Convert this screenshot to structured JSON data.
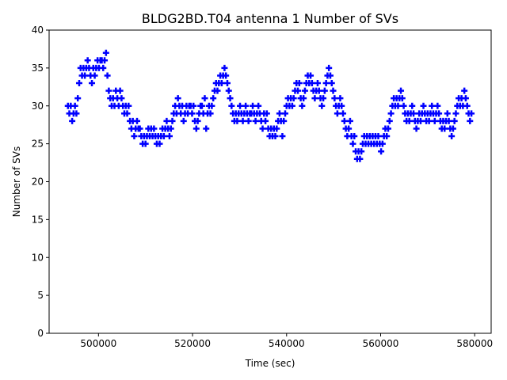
{
  "chart_data": {
    "type": "scatter",
    "title": "BLDG2BD.T04 antenna 1 Number of SVs",
    "xlabel": "Time (sec)",
    "ylabel": "Number of SVs",
    "xlim": [
      489500,
      583500
    ],
    "ylim": [
      0,
      40
    ],
    "xticks": [
      500000,
      520000,
      540000,
      560000,
      580000
    ],
    "xtick_labels": [
      "500000",
      "520000",
      "540000",
      "560000",
      "580000"
    ],
    "yticks": [
      0,
      5,
      10,
      15,
      20,
      25,
      30,
      35,
      40
    ],
    "ytick_labels": [
      "0",
      "5",
      "10",
      "15",
      "20",
      "25",
      "30",
      "35",
      "40"
    ],
    "marker": "+",
    "color": "#0000ff",
    "series": [
      {
        "name": "Number of SVs",
        "points": [
          [
            493500,
            30
          ],
          [
            493800,
            29
          ],
          [
            494100,
            30
          ],
          [
            494400,
            28
          ],
          [
            494700,
            29
          ],
          [
            495000,
            30
          ],
          [
            495300,
            29
          ],
          [
            495600,
            31
          ],
          [
            495900,
            33
          ],
          [
            496200,
            35
          ],
          [
            496500,
            34
          ],
          [
            496800,
            35
          ],
          [
            497100,
            34
          ],
          [
            497400,
            35
          ],
          [
            497700,
            36
          ],
          [
            498000,
            35
          ],
          [
            498300,
            34
          ],
          [
            498600,
            33
          ],
          [
            498900,
            35
          ],
          [
            499200,
            34
          ],
          [
            499500,
            35
          ],
          [
            499800,
            36
          ],
          [
            500100,
            35
          ],
          [
            500400,
            36
          ],
          [
            500700,
            36
          ],
          [
            501000,
            35
          ],
          [
            501300,
            36
          ],
          [
            501600,
            37
          ],
          [
            501900,
            34
          ],
          [
            502200,
            32
          ],
          [
            502500,
            31
          ],
          [
            502800,
            30
          ],
          [
            503100,
            31
          ],
          [
            503400,
            30
          ],
          [
            503700,
            32
          ],
          [
            504000,
            31
          ],
          [
            504300,
            30
          ],
          [
            504600,
            32
          ],
          [
            504900,
            31
          ],
          [
            505200,
            30
          ],
          [
            505500,
            29
          ],
          [
            505800,
            30
          ],
          [
            506100,
            29
          ],
          [
            506400,
            30
          ],
          [
            506700,
            28
          ],
          [
            507000,
            27
          ],
          [
            507300,
            28
          ],
          [
            507600,
            26
          ],
          [
            507900,
            27
          ],
          [
            508200,
            28
          ],
          [
            508500,
            27
          ],
          [
            508800,
            27
          ],
          [
            509100,
            26
          ],
          [
            509400,
            25
          ],
          [
            509700,
            26
          ],
          [
            510000,
            25
          ],
          [
            510300,
            26
          ],
          [
            510600,
            27
          ],
          [
            510900,
            26
          ],
          [
            511200,
            27
          ],
          [
            511500,
            26
          ],
          [
            511800,
            27
          ],
          [
            512100,
            26
          ],
          [
            512400,
            25
          ],
          [
            512700,
            26
          ],
          [
            513000,
            25
          ],
          [
            513300,
            26
          ],
          [
            513600,
            27
          ],
          [
            513900,
            26
          ],
          [
            514200,
            27
          ],
          [
            514500,
            28
          ],
          [
            514800,
            27
          ],
          [
            515100,
            26
          ],
          [
            515400,
            27
          ],
          [
            515700,
            28
          ],
          [
            516000,
            29
          ],
          [
            516300,
            30
          ],
          [
            516600,
            29
          ],
          [
            516900,
            31
          ],
          [
            517200,
            30
          ],
          [
            517500,
            29
          ],
          [
            517800,
            30
          ],
          [
            518100,
            28
          ],
          [
            518400,
            29
          ],
          [
            518700,
            30
          ],
          [
            519000,
            29
          ],
          [
            519300,
            30
          ],
          [
            519600,
            30
          ],
          [
            519900,
            29
          ],
          [
            520200,
            30
          ],
          [
            520500,
            28
          ],
          [
            520800,
            27
          ],
          [
            521100,
            28
          ],
          [
            521400,
            29
          ],
          [
            521700,
            30
          ],
          [
            522000,
            30
          ],
          [
            522300,
            29
          ],
          [
            522600,
            31
          ],
          [
            522900,
            27
          ],
          [
            523200,
            29
          ],
          [
            523500,
            30
          ],
          [
            523800,
            29
          ],
          [
            524100,
            30
          ],
          [
            524400,
            31
          ],
          [
            524700,
            32
          ],
          [
            525000,
            33
          ],
          [
            525300,
            32
          ],
          [
            525600,
            33
          ],
          [
            525900,
            34
          ],
          [
            526200,
            33
          ],
          [
            526500,
            34
          ],
          [
            526800,
            35
          ],
          [
            527100,
            34
          ],
          [
            527400,
            33
          ],
          [
            527700,
            32
          ],
          [
            528000,
            31
          ],
          [
            528300,
            30
          ],
          [
            528600,
            29
          ],
          [
            528900,
            28
          ],
          [
            529200,
            29
          ],
          [
            529500,
            28
          ],
          [
            529800,
            29
          ],
          [
            530100,
            30
          ],
          [
            530400,
            29
          ],
          [
            530700,
            28
          ],
          [
            531000,
            29
          ],
          [
            531300,
            30
          ],
          [
            531600,
            29
          ],
          [
            531900,
            28
          ],
          [
            532200,
            29
          ],
          [
            532500,
            29
          ],
          [
            532800,
            30
          ],
          [
            533100,
            29
          ],
          [
            533400,
            28
          ],
          [
            533700,
            29
          ],
          [
            534000,
            30
          ],
          [
            534300,
            29
          ],
          [
            534600,
            28
          ],
          [
            534900,
            27
          ],
          [
            535200,
            29
          ],
          [
            535500,
            28
          ],
          [
            535800,
            29
          ],
          [
            536100,
            27
          ],
          [
            536400,
            26
          ],
          [
            536700,
            27
          ],
          [
            537000,
            26
          ],
          [
            537300,
            27
          ],
          [
            537600,
            26
          ],
          [
            537900,
            27
          ],
          [
            538200,
            28
          ],
          [
            538500,
            29
          ],
          [
            538800,
            28
          ],
          [
            539100,
            26
          ],
          [
            539400,
            28
          ],
          [
            539700,
            29
          ],
          [
            540000,
            30
          ],
          [
            540300,
            31
          ],
          [
            540600,
            30
          ],
          [
            540900,
            31
          ],
          [
            541200,
            30
          ],
          [
            541500,
            31
          ],
          [
            541800,
            32
          ],
          [
            542100,
            33
          ],
          [
            542400,
            32
          ],
          [
            542700,
            33
          ],
          [
            543000,
            31
          ],
          [
            543300,
            30
          ],
          [
            543600,
            31
          ],
          [
            543900,
            32
          ],
          [
            544200,
            33
          ],
          [
            544500,
            34
          ],
          [
            544800,
            33
          ],
          [
            545100,
            34
          ],
          [
            545400,
            33
          ],
          [
            545700,
            32
          ],
          [
            546000,
            31
          ],
          [
            546300,
            32
          ],
          [
            546600,
            33
          ],
          [
            546900,
            32
          ],
          [
            547200,
            31
          ],
          [
            547500,
            30
          ],
          [
            547800,
            31
          ],
          [
            548100,
            32
          ],
          [
            548400,
            33
          ],
          [
            548700,
            34
          ],
          [
            549000,
            35
          ],
          [
            549300,
            34
          ],
          [
            549600,
            33
          ],
          [
            549900,
            32
          ],
          [
            550200,
            31
          ],
          [
            550500,
            30
          ],
          [
            550800,
            29
          ],
          [
            551100,
            30
          ],
          [
            551400,
            31
          ],
          [
            551700,
            30
          ],
          [
            552000,
            29
          ],
          [
            552300,
            28
          ],
          [
            552600,
            27
          ],
          [
            552900,
            26
          ],
          [
            553200,
            27
          ],
          [
            553500,
            28
          ],
          [
            553800,
            26
          ],
          [
            554100,
            25
          ],
          [
            554400,
            26
          ],
          [
            554700,
            24
          ],
          [
            555000,
            23
          ],
          [
            555300,
            24
          ],
          [
            555600,
            23
          ],
          [
            555900,
            24
          ],
          [
            556200,
            25
          ],
          [
            556500,
            26
          ],
          [
            556800,
            25
          ],
          [
            557100,
            26
          ],
          [
            557400,
            25
          ],
          [
            557700,
            26
          ],
          [
            558000,
            25
          ],
          [
            558300,
            26
          ],
          [
            558600,
            25
          ],
          [
            558900,
            26
          ],
          [
            559200,
            25
          ],
          [
            559500,
            26
          ],
          [
            559800,
            25
          ],
          [
            560100,
            24
          ],
          [
            560400,
            25
          ],
          [
            560700,
            26
          ],
          [
            561000,
            27
          ],
          [
            561300,
            26
          ],
          [
            561600,
            27
          ],
          [
            561900,
            28
          ],
          [
            562200,
            29
          ],
          [
            562500,
            30
          ],
          [
            562800,
            31
          ],
          [
            563100,
            30
          ],
          [
            563400,
            31
          ],
          [
            563700,
            30
          ],
          [
            564000,
            31
          ],
          [
            564300,
            32
          ],
          [
            564600,
            31
          ],
          [
            564900,
            30
          ],
          [
            565200,
            29
          ],
          [
            565500,
            28
          ],
          [
            565800,
            29
          ],
          [
            566100,
            28
          ],
          [
            566400,
            29
          ],
          [
            566700,
            30
          ],
          [
            567000,
            29
          ],
          [
            567300,
            28
          ],
          [
            567600,
            27
          ],
          [
            567900,
            28
          ],
          [
            568200,
            29
          ],
          [
            568500,
            28
          ],
          [
            568800,
            29
          ],
          [
            569100,
            30
          ],
          [
            569400,
            29
          ],
          [
            569700,
            28
          ],
          [
            570000,
            29
          ],
          [
            570300,
            28
          ],
          [
            570600,
            29
          ],
          [
            570900,
            30
          ],
          [
            571200,
            29
          ],
          [
            571500,
            28
          ],
          [
            571800,
            29
          ],
          [
            572100,
            30
          ],
          [
            572400,
            29
          ],
          [
            572700,
            28
          ],
          [
            573000,
            27
          ],
          [
            573300,
            28
          ],
          [
            573600,
            27
          ],
          [
            573900,
            28
          ],
          [
            574200,
            29
          ],
          [
            574500,
            28
          ],
          [
            574800,
            27
          ],
          [
            575100,
            26
          ],
          [
            575400,
            27
          ],
          [
            575700,
            28
          ],
          [
            576000,
            29
          ],
          [
            576300,
            30
          ],
          [
            576600,
            31
          ],
          [
            576900,
            30
          ],
          [
            577200,
            31
          ],
          [
            577500,
            30
          ],
          [
            577800,
            32
          ],
          [
            578100,
            31
          ],
          [
            578400,
            30
          ],
          [
            578700,
            29
          ],
          [
            579000,
            28
          ],
          [
            579300,
            29
          ]
        ]
      }
    ]
  }
}
